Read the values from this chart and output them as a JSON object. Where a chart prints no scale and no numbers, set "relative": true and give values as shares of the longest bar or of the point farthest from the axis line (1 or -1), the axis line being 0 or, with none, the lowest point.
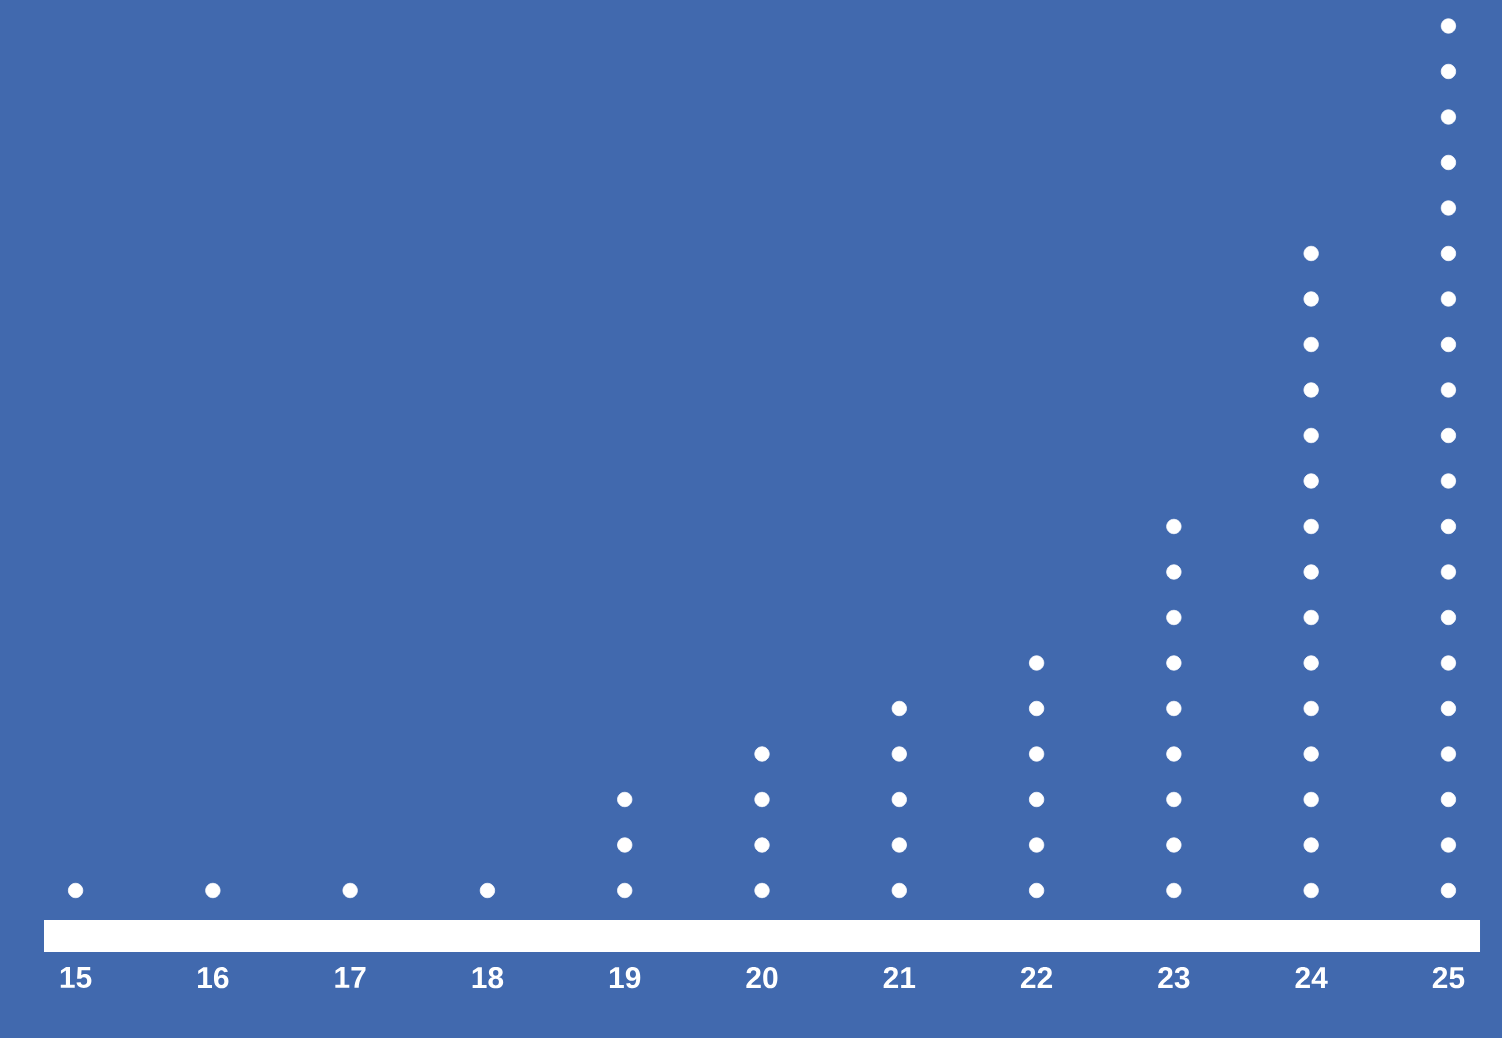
{
  "chart_data": {
    "type": "scatter",
    "relative": true,
    "marker": "circle",
    "color": "#ffffff",
    "x": [
      15,
      16,
      17,
      18,
      19,
      19,
      19,
      20,
      20,
      20,
      20,
      21,
      21,
      21,
      21,
      21,
      22,
      22,
      22,
      22,
      22,
      22,
      23,
      23,
      23,
      23,
      23,
      23,
      23,
      23,
      23,
      24,
      24,
      24,
      24,
      24,
      24,
      24,
      24,
      24,
      24,
      24,
      24,
      24,
      24,
      24,
      25,
      25,
      25,
      25,
      25,
      25,
      25,
      25,
      25,
      25,
      25,
      25,
      25,
      25,
      25,
      25,
      25,
      25,
      25,
      25
    ],
    "values": [
      0.05,
      0.05,
      0.05,
      0.05,
      0.05,
      0.1,
      0.15,
      0.05,
      0.1,
      0.15,
      0.2,
      0.05,
      0.1,
      0.15,
      0.2,
      0.25,
      0.05,
      0.1,
      0.15,
      0.2,
      0.25,
      0.3,
      0.05,
      0.1,
      0.15,
      0.2,
      0.25,
      0.3,
      0.35,
      0.4,
      0.45,
      0.05,
      0.1,
      0.15,
      0.2,
      0.25,
      0.3,
      0.35,
      0.4,
      0.45,
      0.5,
      0.55,
      0.6,
      0.65,
      0.7,
      0.75,
      0.05,
      0.1,
      0.15,
      0.2,
      0.25,
      0.3,
      0.35,
      0.4,
      0.45,
      0.5,
      0.55,
      0.6,
      0.65,
      0.7,
      0.75,
      0.8,
      0.85,
      0.9,
      0.95,
      1
    ],
    "xlim": [
      14.77,
      25.23
    ],
    "xticks": [
      15,
      16,
      17,
      18,
      19,
      20,
      21,
      22,
      23,
      24,
      25
    ],
    "grid": false
  }
}
